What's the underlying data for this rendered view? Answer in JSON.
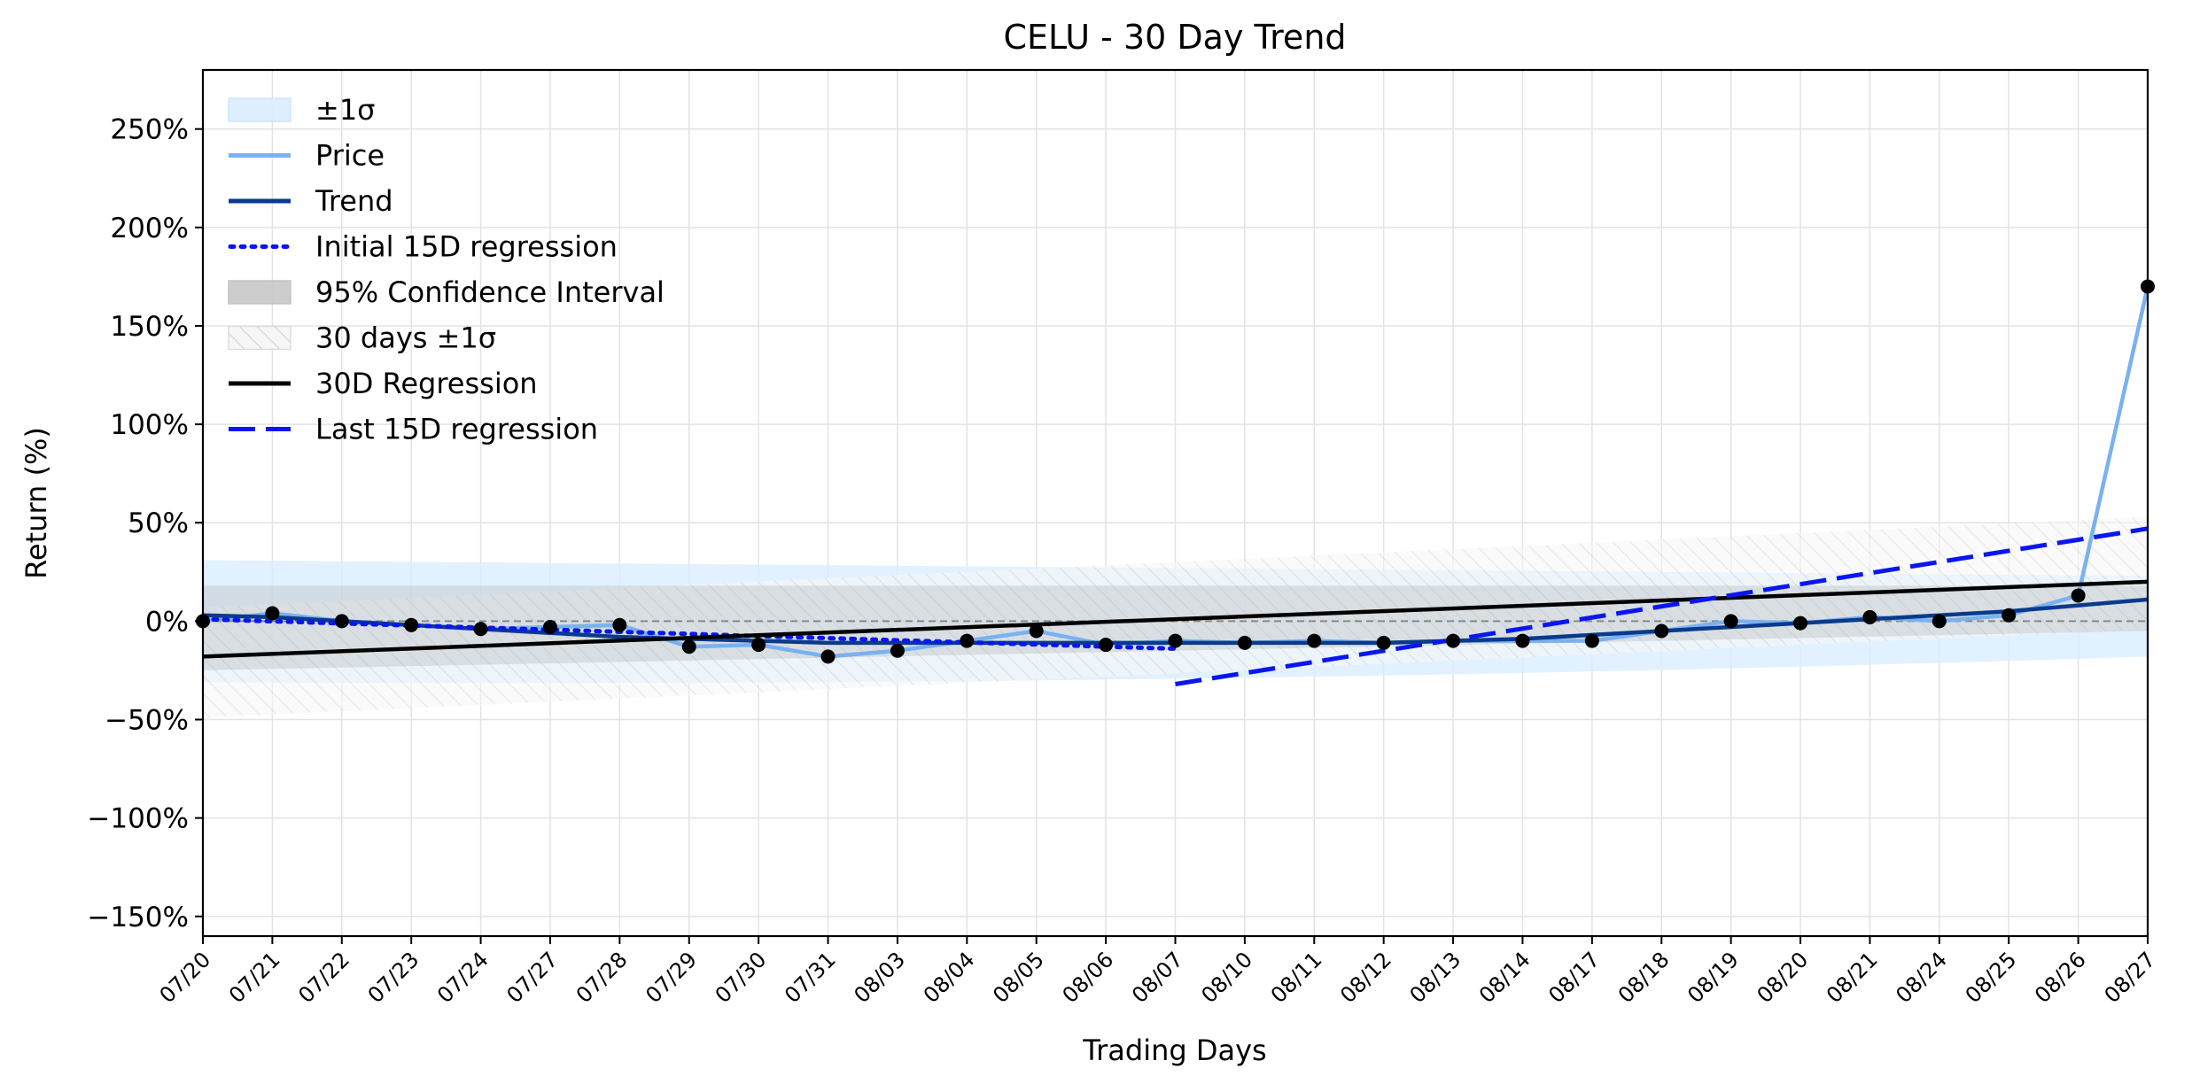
{
  "chart_data": {
    "type": "line",
    "title": "CELU - 30 Day Trend",
    "xlabel": "Trading Days",
    "ylabel": "Return (%)",
    "ylim": [
      -160,
      280
    ],
    "yticks": [
      -150,
      -100,
      -50,
      0,
      50,
      100,
      150,
      200,
      250
    ],
    "ytick_labels": [
      "−150%",
      "−100%",
      "−50%",
      "0%",
      "50%",
      "100%",
      "150%",
      "200%",
      "250%"
    ],
    "categories": [
      "07/20",
      "07/21",
      "07/22",
      "07/23",
      "07/24",
      "07/27",
      "07/28",
      "07/29",
      "07/30",
      "07/31",
      "08/03",
      "08/04",
      "08/05",
      "08/06",
      "08/07",
      "08/10",
      "08/11",
      "08/12",
      "08/13",
      "08/14",
      "08/17",
      "08/18",
      "08/19",
      "08/20",
      "08/21",
      "08/24",
      "08/25",
      "08/26",
      "08/27"
    ],
    "grid": true,
    "legend_position": "top-left",
    "legend": [
      {
        "label": "±1σ",
        "kind": "patch",
        "color": "#dbeeff"
      },
      {
        "label": "Price",
        "kind": "line",
        "color": "#7ab1f0"
      },
      {
        "label": "Trend",
        "kind": "line",
        "color": "#0a3a8c"
      },
      {
        "label": "Initial 15D regression",
        "kind": "dotted",
        "color": "#0a16f0"
      },
      {
        "label": "95% Confidence Interval",
        "kind": "patch",
        "color": "#c8c8c8"
      },
      {
        "label": "30 days ±1σ",
        "kind": "hatch",
        "color": "#bbbbbb"
      },
      {
        "label": "30D Regression",
        "kind": "line",
        "color": "#000000"
      },
      {
        "label": "Last 15D regression",
        "kind": "dashed",
        "color": "#0a16f0"
      }
    ],
    "series": [
      {
        "name": "Price",
        "color": "#7ab1f0",
        "values": [
          0,
          4,
          0,
          -2,
          -4,
          -3,
          -2,
          -13,
          -12,
          -18,
          -15,
          -10,
          -5,
          -12,
          -10,
          -11,
          -10,
          -11,
          -10,
          -10,
          -10,
          -5,
          0,
          -1,
          2,
          0,
          3,
          13,
          170
        ]
      },
      {
        "name": "Trend",
        "color": "#0a3a8c",
        "values": [
          3,
          2,
          0,
          -2,
          -4,
          -6,
          -8,
          -9,
          -10,
          -11,
          -11,
          -11,
          -11,
          -11,
          -11,
          -11,
          -11,
          -11,
          -10,
          -9,
          -7,
          -5,
          -3,
          -1,
          1,
          3,
          5,
          8,
          11
        ]
      },
      {
        "name": "Initial 15D regression",
        "color": "#0a16f0",
        "x_range": [
          0,
          14
        ],
        "y_range": [
          1,
          -14
        ]
      },
      {
        "name": "30D Regression",
        "color": "#000000",
        "x_range": [
          0,
          28
        ],
        "y_range": [
          -18,
          20
        ]
      },
      {
        "name": "Last 15D regression",
        "color": "#0a16f0",
        "x_range": [
          14,
          28
        ],
        "y_range": [
          -32,
          47
        ]
      }
    ],
    "bands": {
      "sigma_1": {
        "upper": [
          31,
          23
        ],
        "lower": [
          -31,
          -18
        ],
        "mid_lower": -34
      },
      "ci_95": {
        "upper": [
          18,
          18
        ],
        "lower": [
          -25,
          -5
        ]
      },
      "days30_sigma": {
        "upper_start": 7,
        "upper_end": 53,
        "lower_start": -49,
        "lower_end": -4
      }
    }
  }
}
